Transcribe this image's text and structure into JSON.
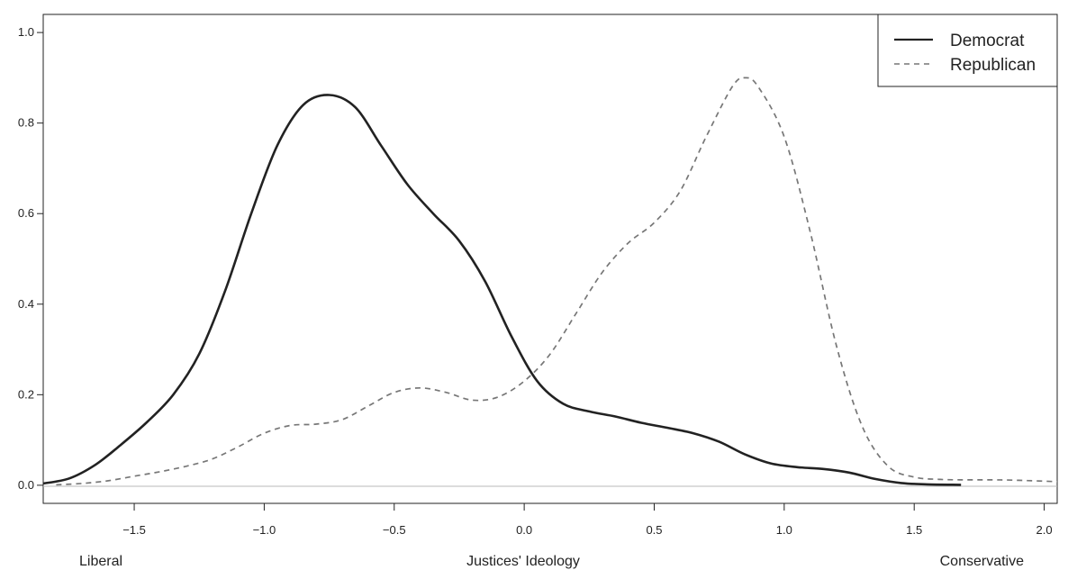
{
  "chart_data": {
    "type": "line",
    "xlabel": "Justices' Ideology",
    "xlabel_left": "Liberal",
    "xlabel_right": "Conservative",
    "ylabel": "",
    "xlim": [
      -1.85,
      2.05
    ],
    "ylim": [
      -0.04,
      1.04
    ],
    "x_ticks": [
      -1.5,
      -1.0,
      -0.5,
      0.0,
      0.5,
      1.0,
      1.5,
      2.0
    ],
    "x_tick_labels": [
      "−1.5",
      "−1.0",
      "−0.5",
      "0.0",
      "0.5",
      "1.0",
      "1.5",
      "2.0"
    ],
    "y_ticks": [
      0.0,
      0.2,
      0.4,
      0.6,
      0.8,
      1.0
    ],
    "y_tick_labels": [
      "0.0",
      "0.2",
      "0.4",
      "0.6",
      "0.8",
      "1.0"
    ],
    "grid": false,
    "baseline": 0,
    "legend": {
      "position": "top-right"
    },
    "series": [
      {
        "name": "Democrat",
        "style": "solid",
        "color": "#222222",
        "points": [
          [
            -1.85,
            0.004
          ],
          [
            -1.75,
            0.015
          ],
          [
            -1.65,
            0.045
          ],
          [
            -1.55,
            0.09
          ],
          [
            -1.45,
            0.14
          ],
          [
            -1.35,
            0.2
          ],
          [
            -1.25,
            0.29
          ],
          [
            -1.15,
            0.43
          ],
          [
            -1.05,
            0.6
          ],
          [
            -0.95,
            0.75
          ],
          [
            -0.85,
            0.84
          ],
          [
            -0.75,
            0.862
          ],
          [
            -0.65,
            0.835
          ],
          [
            -0.55,
            0.75
          ],
          [
            -0.45,
            0.665
          ],
          [
            -0.35,
            0.6
          ],
          [
            -0.25,
            0.54
          ],
          [
            -0.15,
            0.45
          ],
          [
            -0.05,
            0.33
          ],
          [
            0.05,
            0.23
          ],
          [
            0.15,
            0.18
          ],
          [
            0.25,
            0.163
          ],
          [
            0.35,
            0.152
          ],
          [
            0.45,
            0.138
          ],
          [
            0.55,
            0.127
          ],
          [
            0.65,
            0.115
          ],
          [
            0.75,
            0.096
          ],
          [
            0.85,
            0.068
          ],
          [
            0.95,
            0.048
          ],
          [
            1.05,
            0.04
          ],
          [
            1.15,
            0.036
          ],
          [
            1.25,
            0.028
          ],
          [
            1.35,
            0.014
          ],
          [
            1.45,
            0.005
          ],
          [
            1.55,
            0.002
          ],
          [
            1.68,
            0.001
          ]
        ]
      },
      {
        "name": "Republican",
        "style": "dashed",
        "color": "#777777",
        "points": [
          [
            -1.8,
            0.001
          ],
          [
            -1.7,
            0.004
          ],
          [
            -1.6,
            0.01
          ],
          [
            -1.5,
            0.02
          ],
          [
            -1.4,
            0.03
          ],
          [
            -1.3,
            0.042
          ],
          [
            -1.2,
            0.058
          ],
          [
            -1.1,
            0.085
          ],
          [
            -1.0,
            0.115
          ],
          [
            -0.9,
            0.132
          ],
          [
            -0.8,
            0.135
          ],
          [
            -0.7,
            0.145
          ],
          [
            -0.6,
            0.175
          ],
          [
            -0.5,
            0.205
          ],
          [
            -0.4,
            0.215
          ],
          [
            -0.3,
            0.205
          ],
          [
            -0.2,
            0.188
          ],
          [
            -0.1,
            0.195
          ],
          [
            0.0,
            0.23
          ],
          [
            0.1,
            0.29
          ],
          [
            0.2,
            0.38
          ],
          [
            0.3,
            0.47
          ],
          [
            0.4,
            0.535
          ],
          [
            0.5,
            0.58
          ],
          [
            0.6,
            0.65
          ],
          [
            0.7,
            0.77
          ],
          [
            0.8,
            0.88
          ],
          [
            0.85,
            0.9
          ],
          [
            0.9,
            0.88
          ],
          [
            1.0,
            0.77
          ],
          [
            1.1,
            0.56
          ],
          [
            1.2,
            0.31
          ],
          [
            1.3,
            0.13
          ],
          [
            1.4,
            0.042
          ],
          [
            1.5,
            0.018
          ],
          [
            1.6,
            0.013
          ],
          [
            1.7,
            0.012
          ],
          [
            1.8,
            0.012
          ],
          [
            1.9,
            0.011
          ],
          [
            2.05,
            0.008
          ]
        ]
      }
    ]
  }
}
